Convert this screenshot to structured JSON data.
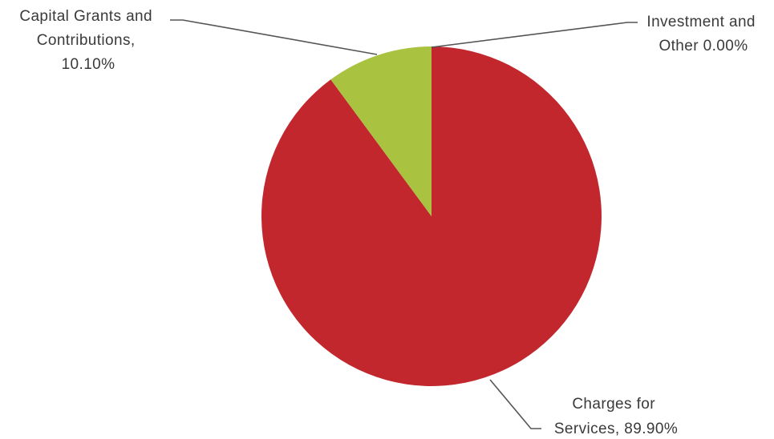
{
  "chart_data": {
    "type": "pie",
    "title": "",
    "start_angle_deg": 0,
    "direction": "clockwise",
    "slices": [
      {
        "name": "Charges for Services",
        "value": 89.9,
        "color": "#c1272d",
        "label_lines": [
          "Charges for",
          "Services, 89.90%"
        ]
      },
      {
        "name": "Capital Grants and Contributions",
        "value": 10.1,
        "color": "#a9c23f",
        "label_lines": [
          "Capital Grants and",
          "Contributions,",
          "10.10%"
        ]
      },
      {
        "name": "Investment and Other",
        "value": 0.0,
        "color": "#4f81bd",
        "label_lines": [
          "Investment and",
          "Other 0.00%"
        ]
      }
    ],
    "legend": "none",
    "labels": "outside-with-leader-lines"
  }
}
